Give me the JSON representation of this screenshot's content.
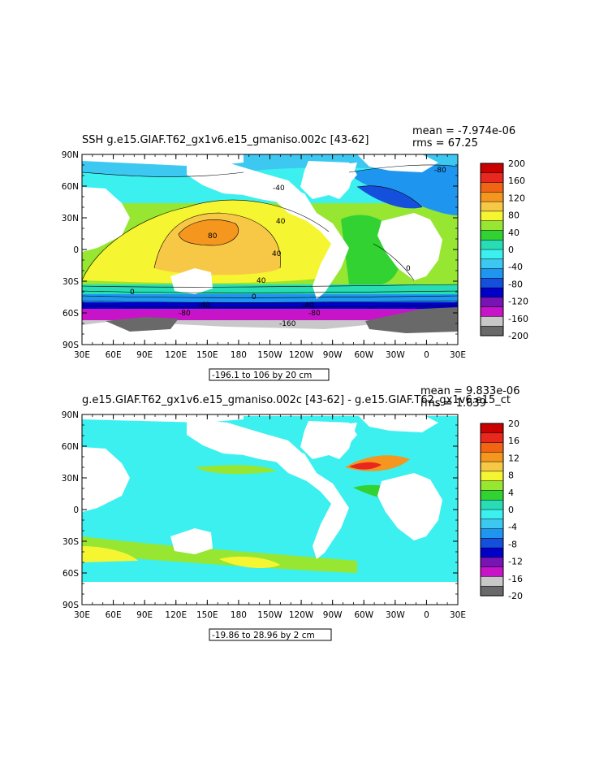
{
  "panels": [
    {
      "title": "SSH g.e15.GIAF.T62_gx1v6.e15_gmaniso.002c [43-62]",
      "mean_text": "mean = -7.974e-06",
      "rms_text": "rms = 67.25",
      "range_text": "-196.1 to 106 by 20 cm",
      "colorbar_labels": [
        "200",
        "160",
        "120",
        "80",
        "40",
        "0",
        "-40",
        "-80",
        "-120",
        "-160",
        "-200"
      ],
      "colorbar_colors": [
        "#c80000",
        "#e8281e",
        "#f06414",
        "#f5961e",
        "#f7c846",
        "#f5f532",
        "#96e632",
        "#32d232",
        "#28dcb4",
        "#3cf0f0",
        "#3cc8f0",
        "#1e96f0",
        "#1450dc",
        "#0000c8",
        "#7814b4",
        "#c814c8",
        "#c8c8c8",
        "#696969"
      ],
      "contour_labels": [
        "80",
        "40",
        "40",
        "40",
        "0",
        "0",
        "-40",
        "-40",
        "-80",
        "-160",
        "-40",
        "-80",
        "0",
        "-80"
      ]
    },
    {
      "title": "g.e15.GIAF.T62_gx1v6.e15_gmaniso.002c [43-62] - g.e15.GIAF.T62_gx1v6.e15_ct",
      "mean_text": "mean = 9.833e-06",
      "rms_text": "rms = 1.639",
      "range_text": "-19.86 to 28.96 by 2 cm",
      "colorbar_labels": [
        "20",
        "16",
        "12",
        "8",
        "4",
        "0",
        "-4",
        "-8",
        "-12",
        "-16",
        "-20"
      ],
      "colorbar_colors": [
        "#c80000",
        "#e8281e",
        "#f06414",
        "#f5961e",
        "#f7c846",
        "#f5f532",
        "#96e632",
        "#32d232",
        "#28dcb4",
        "#3cf0f0",
        "#3cc8f0",
        "#1e96f0",
        "#1450dc",
        "#0000c8",
        "#7814b4",
        "#c814c8",
        "#c8c8c8",
        "#696969"
      ],
      "contour_labels": []
    }
  ],
  "lat_labels": [
    "90N",
    "60N",
    "30N",
    "0",
    "30S",
    "60S",
    "90S"
  ],
  "lon_labels": [
    "30E",
    "60E",
    "90E",
    "120E",
    "150E",
    "180",
    "150W",
    "120W",
    "90W",
    "60W",
    "30W",
    "0",
    "30E"
  ],
  "colors": {
    "land": "#ffffff",
    "frame": "#000000",
    "contour": "#000000"
  }
}
